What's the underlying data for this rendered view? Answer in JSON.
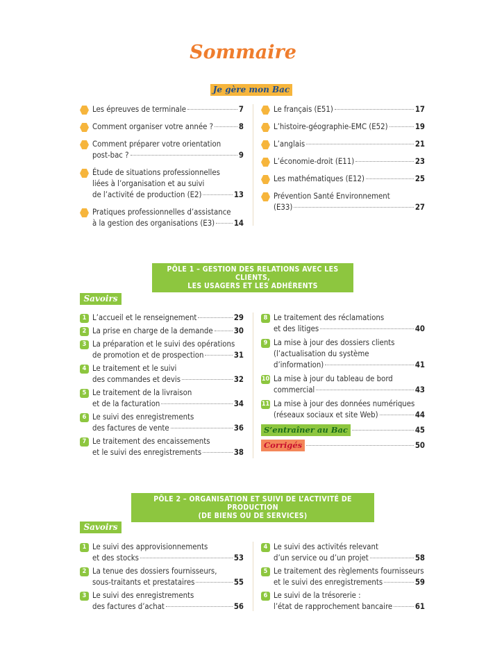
{
  "title": "Sommaire",
  "colors": {
    "orange": "#f6b53c",
    "green": "#8dc63f",
    "title": "#ef7d2d",
    "corriges": "#f4875a"
  },
  "je_gere": {
    "label": "Je gère mon Bac",
    "left": [
      {
        "lines": [
          "Les épreuves de terminale"
        ],
        "page": "7"
      },
      {
        "lines": [
          "Comment organiser votre année ?"
        ],
        "page": "8"
      },
      {
        "lines": [
          "Comment préparer votre orientation",
          "post-bac ?"
        ],
        "page": "9"
      },
      {
        "lines": [
          "Étude de situations professionnelles",
          "liées à l’organisation et au suivi",
          "de l’activité de production (E2)"
        ],
        "page": "13"
      },
      {
        "lines": [
          "Pratiques professionnelles d’assistance",
          "à la gestion des organisations (E3)"
        ],
        "page": "14"
      }
    ],
    "right": [
      {
        "lines": [
          "Le français (E51)"
        ],
        "page": "17"
      },
      {
        "lines": [
          "L’histoire-géographie-EMC (E52)"
        ],
        "page": "19"
      },
      {
        "lines": [
          "L’anglais"
        ],
        "page": "21"
      },
      {
        "lines": [
          "L’économie-droit (E11)"
        ],
        "page": "23"
      },
      {
        "lines": [
          "Les mathématiques (E12)"
        ],
        "page": "25"
      },
      {
        "lines": [
          "Prévention Santé Environnement",
          "(E33)"
        ],
        "page": "27"
      }
    ]
  },
  "pole1": {
    "banner": [
      "PÔLE 1 – GESTION DES RELATIONS AVEC LES CLIENTS,",
      "LES USAGERS ET LES ADHÉRENTS"
    ],
    "savoirs": "Savoirs",
    "left": [
      {
        "n": "1",
        "lines": [
          "L’accueil et le renseignement"
        ],
        "page": "29"
      },
      {
        "n": "2",
        "lines": [
          "La prise en charge de la demande"
        ],
        "page": "30"
      },
      {
        "n": "3",
        "lines": [
          "La préparation et le suivi des opérations",
          "de promotion et de prospection"
        ],
        "page": "31"
      },
      {
        "n": "4",
        "lines": [
          "Le traitement et le suivi",
          "des commandes et devis"
        ],
        "page": "32"
      },
      {
        "n": "5",
        "lines": [
          "Le traitement de la livraison",
          "et de la facturation"
        ],
        "page": "34"
      },
      {
        "n": "6",
        "lines": [
          "Le suivi des enregistrements",
          "des factures de vente"
        ],
        "page": "36"
      },
      {
        "n": "7",
        "lines": [
          "Le traitement des encaissements",
          "et le suivi des enregistrements"
        ],
        "page": "38"
      }
    ],
    "right": [
      {
        "n": "8",
        "lines": [
          "Le traitement des réclamations",
          "et des litiges"
        ],
        "page": "40"
      },
      {
        "n": "9",
        "lines": [
          "La mise à jour des dossiers clients",
          "(l’actualisation du système",
          "d’information)"
        ],
        "page": "41"
      },
      {
        "n": "10",
        "lines": [
          "La mise à jour du tableau de bord",
          "commercial"
        ],
        "page": "43"
      },
      {
        "n": "11",
        "lines": [
          "La mise à jour des données numériques",
          "(réseaux sociaux et site Web)"
        ],
        "page": "44"
      }
    ],
    "entrainer": {
      "label": "S’entraîner au Bac",
      "page": "45"
    },
    "corriges": {
      "label": "Corrigés",
      "page": "50"
    }
  },
  "pole2": {
    "banner": [
      "PÔLE 2 – ORGANISATION ET SUIVI DE L’ACTIVITÉ DE PRODUCTION",
      "(DE BIENS OU DE SERVICES)"
    ],
    "savoirs": "Savoirs",
    "left": [
      {
        "n": "1",
        "lines": [
          "Le suivi des approvisionnements",
          "et des stocks"
        ],
        "page": "53"
      },
      {
        "n": "2",
        "lines": [
          "La tenue des dossiers fournisseurs,",
          "sous-traitants et prestataires"
        ],
        "page": "55"
      },
      {
        "n": "3",
        "lines": [
          "Le suivi des enregistrements",
          "des factures d’achat"
        ],
        "page": "56"
      }
    ],
    "right": [
      {
        "n": "4",
        "lines": [
          "Le suivi des activités relevant",
          "d’un service ou d’un projet"
        ],
        "page": "58"
      },
      {
        "n": "5",
        "lines": [
          "Le traitement des règlements fournisseurs",
          "et le suivi des enregistrements"
        ],
        "page": "59"
      },
      {
        "n": "6",
        "lines": [
          "Le suivi de la trésorerie :",
          "l’état de rapprochement bancaire"
        ],
        "page": "61"
      }
    ]
  }
}
